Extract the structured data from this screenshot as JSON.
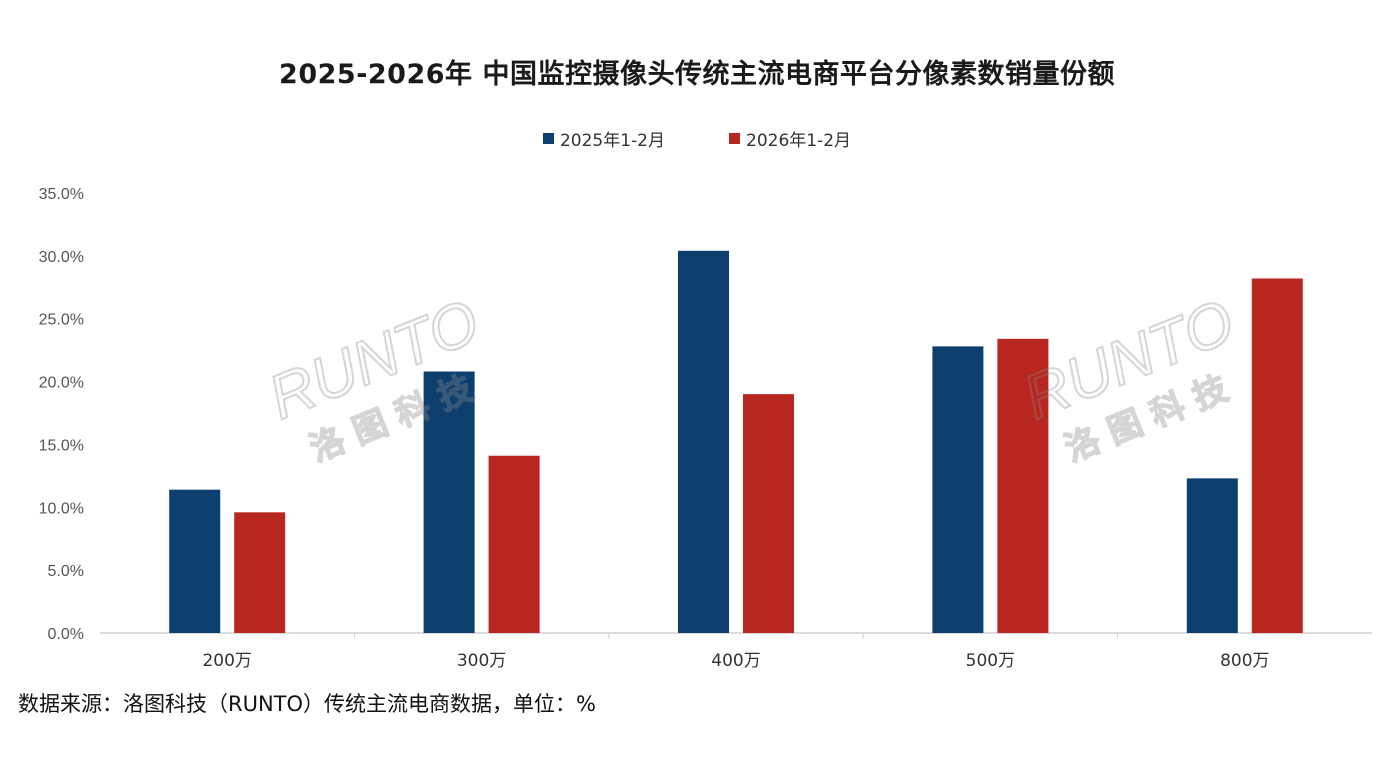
{
  "title": "2025-2026年 中国监控摄像头传统主流电商平台分像素数销量份额",
  "source_note": "数据来源：洛图科技（RUNTO）传统主流电商数据，单位：%",
  "watermark": {
    "text_en": "RUNTO",
    "text_cn": "洛 图 科 技"
  },
  "colors": {
    "series_2025": "#0d3f6e",
    "series_2026": "#b7261f",
    "axis": "#d0d0d0",
    "tick_text": "#555555"
  },
  "chart_data": {
    "type": "bar",
    "categories": [
      "200万",
      "300万",
      "400万",
      "500万",
      "800万"
    ],
    "series": [
      {
        "name": "2025年1-2月",
        "values": [
          11.4,
          20.8,
          30.4,
          22.8,
          12.3
        ]
      },
      {
        "name": "2026年1-2月",
        "values": [
          9.6,
          14.1,
          19.0,
          23.4,
          28.2
        ]
      }
    ],
    "ylim": [
      0,
      35
    ],
    "yticks": [
      "0.0%",
      "5.0%",
      "10.0%",
      "15.0%",
      "20.0%",
      "25.0%",
      "30.0%",
      "35.0%"
    ],
    "legend_position": "top-center",
    "grid": false
  }
}
